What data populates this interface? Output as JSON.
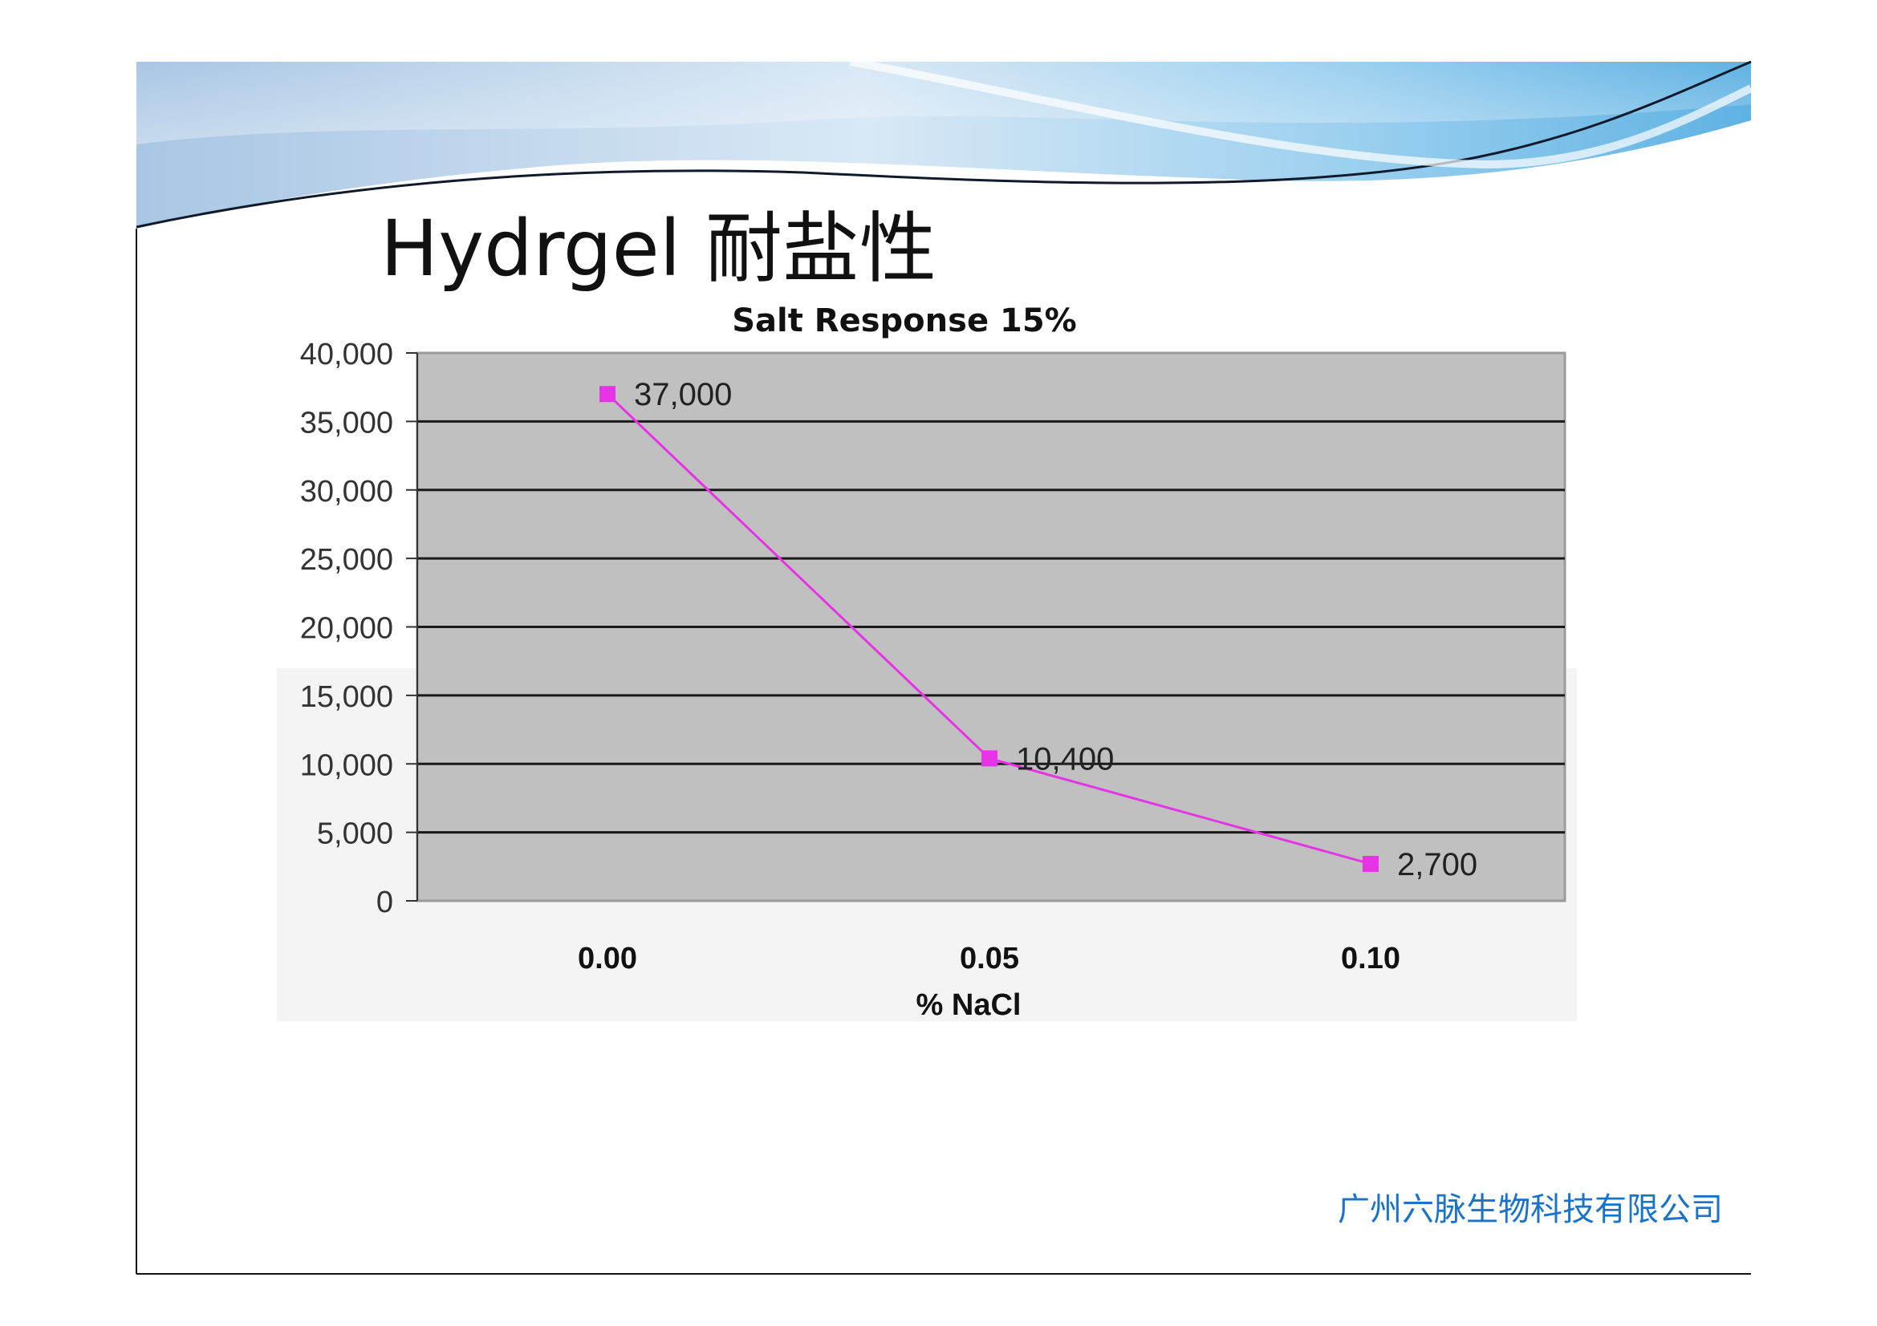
{
  "slide": {
    "title": "Hydrgel 耐盐性",
    "footer": "广州六脉生物科技有限公司"
  },
  "colors": {
    "plot_background": "#c0c0c0",
    "gridline": "#1a1a1a",
    "series": "#e633e6",
    "footer_text": "#1a73c9"
  },
  "chart_data": {
    "type": "line",
    "title": "Salt Response 15%",
    "xlabel": "% NaCl",
    "ylabel": "",
    "categories": [
      "0.00",
      "0.05",
      "0.10"
    ],
    "series": [
      {
        "values": [
          37000,
          10400,
          2700
        ],
        "data_labels": [
          "37,000",
          "10,400",
          "2,700"
        ]
      }
    ],
    "ylim": [
      0,
      40000
    ],
    "yticks": [
      0,
      5000,
      10000,
      15000,
      20000,
      25000,
      30000,
      35000,
      40000
    ],
    "ytick_labels": [
      "0",
      "5,000",
      "10,000",
      "15,000",
      "20,000",
      "25,000",
      "30,000",
      "35,000",
      "40,000"
    ],
    "grid": true,
    "legend": "none"
  }
}
